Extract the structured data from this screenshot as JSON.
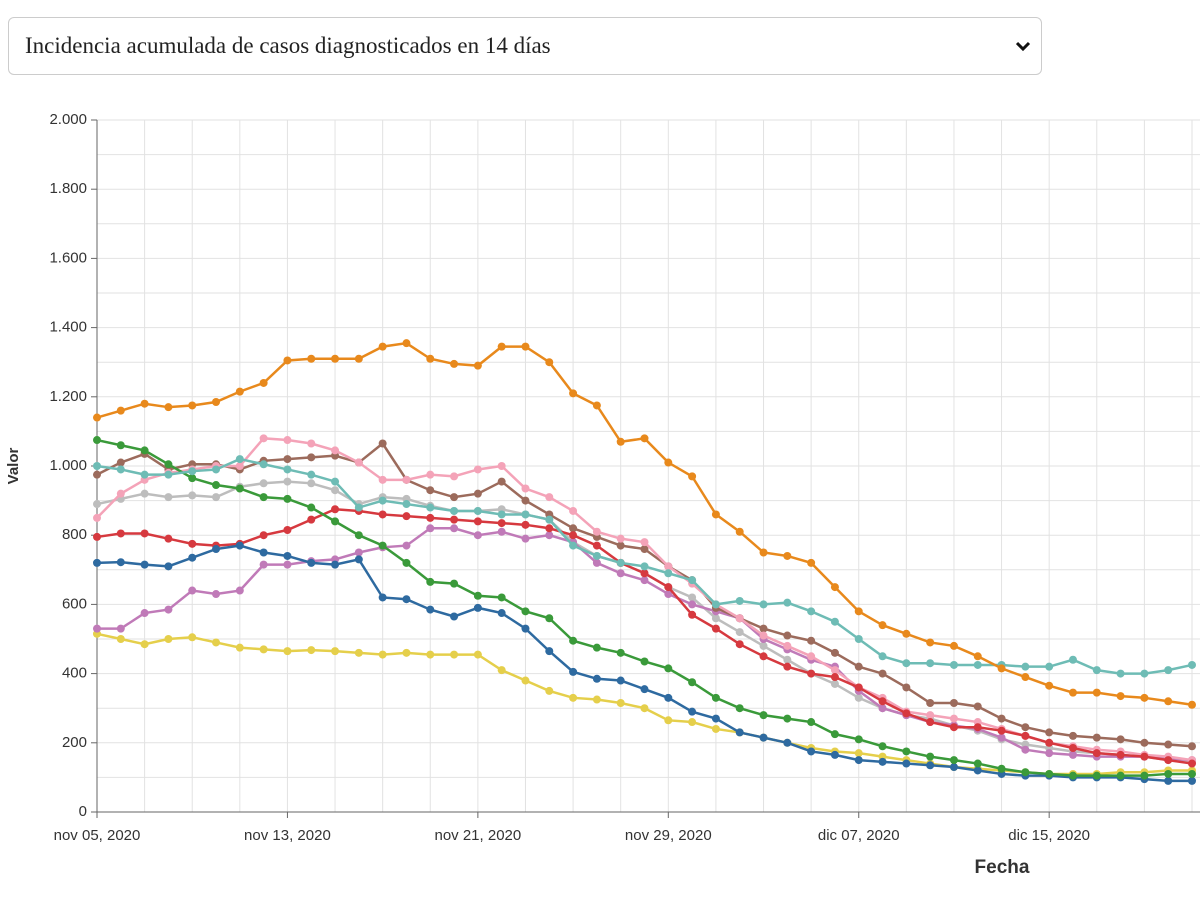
{
  "selector": {
    "label": "Incidencia acumulada de casos diagnosticados en 14 días"
  },
  "chart_data": {
    "type": "line",
    "x_label": "Fecha",
    "y_label": "Valor",
    "x": [
      "2020-11-05",
      "2020-11-06",
      "2020-11-07",
      "2020-11-08",
      "2020-11-09",
      "2020-11-10",
      "2020-11-11",
      "2020-11-12",
      "2020-11-13",
      "2020-11-14",
      "2020-11-15",
      "2020-11-16",
      "2020-11-17",
      "2020-11-18",
      "2020-11-19",
      "2020-11-20",
      "2020-11-21",
      "2020-11-22",
      "2020-11-23",
      "2020-11-24",
      "2020-11-25",
      "2020-11-26",
      "2020-11-27",
      "2020-11-28",
      "2020-11-29",
      "2020-11-30",
      "2020-12-01",
      "2020-12-02",
      "2020-12-03",
      "2020-12-04",
      "2020-12-05",
      "2020-12-06",
      "2020-12-07",
      "2020-12-08",
      "2020-12-09",
      "2020-12-10",
      "2020-12-11",
      "2020-12-12",
      "2020-12-13",
      "2020-12-14",
      "2020-12-15",
      "2020-12-16",
      "2020-12-17",
      "2020-12-18",
      "2020-12-19",
      "2020-12-20",
      "2020-12-21"
    ],
    "xlim": [
      "2020-11-05",
      "2020-12-21"
    ],
    "xticks": [
      {
        "value": "2020-11-05",
        "label": "nov 05, 2020"
      },
      {
        "value": "2020-11-13",
        "label": "nov 13, 2020"
      },
      {
        "value": "2020-11-21",
        "label": "nov 21, 2020"
      },
      {
        "value": "2020-11-29",
        "label": "nov 29, 2020"
      },
      {
        "value": "2020-12-07",
        "label": "dic 07, 2020"
      },
      {
        "value": "2020-12-15",
        "label": "dic 15, 2020"
      }
    ],
    "xminorticks": [
      "2020-11-07",
      "2020-11-09",
      "2020-11-11",
      "2020-11-15",
      "2020-11-17",
      "2020-11-19",
      "2020-11-23",
      "2020-11-25",
      "2020-11-27",
      "2020-12-01",
      "2020-12-03",
      "2020-12-05",
      "2020-12-09",
      "2020-12-11",
      "2020-12-13",
      "2020-12-17",
      "2020-12-19",
      "2020-12-21"
    ],
    "ylim": [
      0,
      2000
    ],
    "yticks": [
      0,
      200,
      400,
      600,
      800,
      {
        "value": 1000,
        "label": "1.000"
      },
      {
        "value": 1200,
        "label": "1.200"
      },
      {
        "value": 1400,
        "label": "1.400"
      },
      {
        "value": 1600,
        "label": "1.600"
      },
      {
        "value": 1800,
        "label": "1.800"
      },
      {
        "value": 2000,
        "label": "2.000"
      }
    ],
    "yminorticks": [
      100,
      300,
      500,
      700,
      900,
      1100,
      1300,
      1500,
      1700,
      1900
    ],
    "grid": true,
    "series": [
      {
        "color": "#e5cf4b",
        "values": [
          515,
          500,
          485,
          500,
          505,
          490,
          475,
          470,
          465,
          468,
          465,
          460,
          455,
          460,
          455,
          455,
          455,
          410,
          380,
          350,
          330,
          325,
          315,
          300,
          265,
          260,
          240,
          230,
          215,
          200,
          185,
          175,
          170,
          160,
          150,
          140,
          130,
          125,
          120,
          115,
          110,
          110,
          110,
          115,
          115,
          120,
          120
        ]
      },
      {
        "color": "#bdbdbd",
        "values": [
          890,
          905,
          920,
          910,
          915,
          910,
          940,
          950,
          955,
          950,
          930,
          890,
          910,
          905,
          885,
          870,
          870,
          875,
          860,
          845,
          780,
          740,
          720,
          690,
          650,
          620,
          560,
          520,
          480,
          440,
          400,
          370,
          330,
          300,
          280,
          270,
          250,
          235,
          210,
          195,
          185,
          175,
          170,
          165,
          160,
          150,
          145
        ]
      },
      {
        "color": "#c07ab8",
        "values": [
          530,
          530,
          575,
          585,
          640,
          630,
          640,
          715,
          715,
          725,
          730,
          750,
          765,
          770,
          820,
          820,
          800,
          810,
          790,
          800,
          780,
          720,
          690,
          670,
          630,
          600,
          580,
          560,
          500,
          470,
          440,
          420,
          350,
          300,
          280,
          260,
          250,
          240,
          215,
          180,
          170,
          165,
          160,
          160,
          160,
          155,
          150
        ]
      },
      {
        "color": "#9c6b5c",
        "values": [
          975,
          1010,
          1035,
          990,
          1005,
          1005,
          990,
          1015,
          1020,
          1025,
          1030,
          1010,
          1065,
          960,
          930,
          910,
          920,
          955,
          900,
          860,
          820,
          795,
          770,
          760,
          710,
          670,
          590,
          560,
          530,
          510,
          495,
          460,
          420,
          400,
          360,
          315,
          315,
          305,
          270,
          245,
          230,
          220,
          215,
          210,
          200,
          195,
          190
        ]
      },
      {
        "color": "#f4a3b8",
        "values": [
          850,
          920,
          960,
          980,
          990,
          1000,
          1000,
          1080,
          1075,
          1065,
          1045,
          1010,
          960,
          960,
          975,
          970,
          990,
          1000,
          935,
          910,
          870,
          810,
          790,
          780,
          710,
          660,
          600,
          560,
          510,
          480,
          450,
          410,
          360,
          330,
          290,
          280,
          270,
          260,
          240,
          220,
          200,
          190,
          180,
          175,
          165,
          160,
          150
        ]
      },
      {
        "color": "#d6393f",
        "values": [
          795,
          805,
          805,
          790,
          775,
          770,
          775,
          800,
          815,
          845,
          875,
          870,
          860,
          855,
          850,
          845,
          840,
          835,
          830,
          820,
          800,
          770,
          720,
          690,
          650,
          570,
          530,
          485,
          450,
          420,
          400,
          390,
          360,
          320,
          285,
          260,
          245,
          245,
          235,
          220,
          200,
          185,
          170,
          165,
          160,
          150,
          140
        ]
      },
      {
        "color": "#2e6aa0",
        "values": [
          720,
          722,
          715,
          710,
          735,
          760,
          770,
          750,
          740,
          720,
          715,
          730,
          620,
          615,
          585,
          565,
          590,
          575,
          530,
          465,
          405,
          385,
          380,
          355,
          330,
          290,
          270,
          230,
          215,
          200,
          175,
          165,
          150,
          145,
          140,
          135,
          130,
          120,
          110,
          105,
          105,
          100,
          100,
          100,
          95,
          90,
          90
        ]
      },
      {
        "color": "#3a9a3a",
        "values": [
          1075,
          1060,
          1045,
          1005,
          965,
          945,
          935,
          910,
          905,
          880,
          840,
          800,
          770,
          720,
          665,
          660,
          625,
          620,
          580,
          560,
          495,
          475,
          460,
          435,
          415,
          375,
          330,
          300,
          280,
          270,
          260,
          225,
          210,
          190,
          175,
          160,
          150,
          140,
          125,
          115,
          110,
          105,
          105,
          105,
          105,
          110,
          110
        ]
      },
      {
        "color": "#6ebcb5",
        "values": [
          1000,
          990,
          975,
          975,
          985,
          990,
          1020,
          1005,
          990,
          975,
          955,
          880,
          900,
          890,
          880,
          870,
          870,
          860,
          860,
          845,
          770,
          740,
          720,
          710,
          690,
          670,
          600,
          610,
          600,
          605,
          580,
          550,
          500,
          450,
          430,
          430,
          425,
          425,
          425,
          420,
          420,
          440,
          410,
          400,
          400,
          410,
          425
        ]
      },
      {
        "color": "#e8891c",
        "values": [
          1140,
          1160,
          1180,
          1170,
          1175,
          1185,
          1215,
          1240,
          1305,
          1310,
          1310,
          1310,
          1345,
          1355,
          1310,
          1295,
          1290,
          1345,
          1345,
          1300,
          1210,
          1175,
          1070,
          1080,
          1010,
          970,
          860,
          810,
          750,
          740,
          720,
          650,
          580,
          540,
          515,
          490,
          480,
          450,
          415,
          390,
          365,
          345,
          345,
          335,
          330,
          320,
          310
        ]
      }
    ]
  }
}
